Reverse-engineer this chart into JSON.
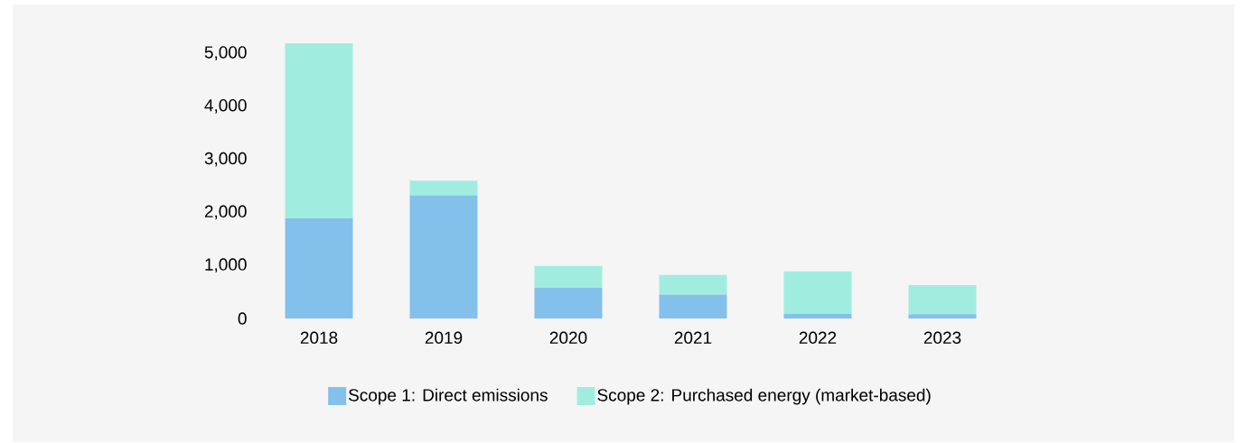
{
  "chart_data": {
    "type": "bar",
    "stacked": true,
    "categories": [
      "2018",
      "2019",
      "2020",
      "2021",
      "2022",
      "2023"
    ],
    "series": [
      {
        "name": "Scope 1: Direct emissions",
        "color": "#83c1ea",
        "values": [
          1890,
          2320,
          580,
          450,
          90,
          80
        ]
      },
      {
        "name": "Scope 2: Purchased energy (market-based)",
        "color": "#a0ede0",
        "values": [
          3300,
          280,
          410,
          370,
          800,
          550
        ]
      }
    ],
    "ylim": [
      0,
      5190
    ],
    "yticks": [
      {
        "value": 0,
        "label": "0"
      },
      {
        "value": 1000,
        "label": "1,000"
      },
      {
        "value": 2000,
        "label": "2,000"
      },
      {
        "value": 3000,
        "label": "3,000"
      },
      {
        "value": 4000,
        "label": "4,000"
      },
      {
        "value": 5000,
        "label": "5,000"
      }
    ],
    "legend": "bottom"
  }
}
